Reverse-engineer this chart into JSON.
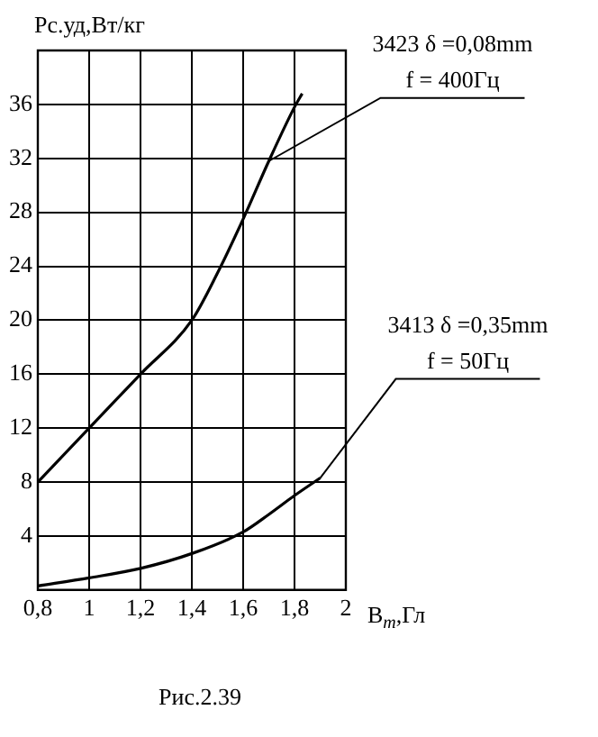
{
  "chart_data": {
    "type": "line",
    "ylabel": "Рс.уд,Вт/кг",
    "xlabel": "B$_{m}$,Гл",
    "xlim": [
      0.8,
      2
    ],
    "xticks": [
      {
        "value": 0.8,
        "label": "0,8"
      },
      1,
      {
        "value": 1.2,
        "label": "1,2"
      },
      {
        "value": 1.4,
        "label": "1,4"
      },
      {
        "value": 1.6,
        "label": "1,6"
      },
      {
        "value": 1.8,
        "label": "1,8"
      },
      2
    ],
    "ylim": [
      0,
      40
    ],
    "yticks": [
      4,
      8,
      12,
      16,
      20,
      24,
      28,
      32,
      36
    ],
    "grid": true,
    "legend": false,
    "marker": "none",
    "line_style": "solid",
    "series": [
      {
        "color": "#000000",
        "x": [
          0.8,
          1.0,
          1.2,
          1.4,
          1.5,
          1.6,
          1.7,
          1.8,
          1.83
        ],
        "values": [
          8,
          12,
          16,
          20,
          23.5,
          27.5,
          31.8,
          35.8,
          36.8
        ]
      },
      {
        "color": "#000000",
        "x": [
          0.8,
          1.0,
          1.2,
          1.4,
          1.6,
          1.7,
          1.8,
          1.9
        ],
        "values": [
          0.3,
          0.9,
          1.6,
          2.7,
          4.3,
          5.6,
          7,
          8.3
        ]
      }
    ],
    "annotations": [
      {
        "text": "3423 δ =0,08mm\nf = 400Гц",
        "x": 1.7,
        "y": 31.8
      },
      {
        "text": "3413 δ =0,35mm\nf = 50Гц",
        "x": 1.9,
        "y": 8.3
      },
      "Рис.2.39"
    ]
  }
}
